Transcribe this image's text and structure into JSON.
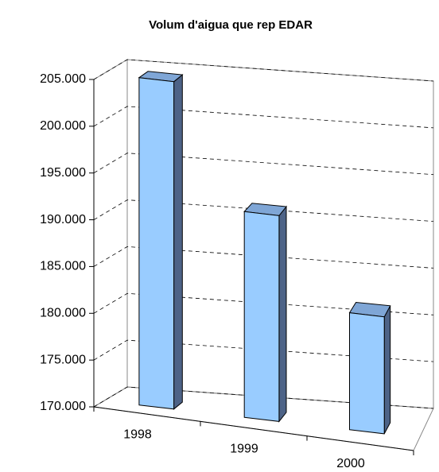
{
  "chart_data": {
    "type": "bar3d",
    "title": "Volum d'aigua que rep EDAR",
    "categories": [
      "1998",
      "1999",
      "2000"
    ],
    "values": [
      205000,
      192000,
      182500
    ],
    "color": "#99ccff",
    "ylim": [
      170000,
      205000
    ],
    "yticks": [
      {
        "value": 170000,
        "label": "170.000"
      },
      {
        "value": 175000,
        "label": "175.000"
      },
      {
        "value": 180000,
        "label": "180.000"
      },
      {
        "value": 185000,
        "label": "185.000"
      },
      {
        "value": 190000,
        "label": "190.000"
      },
      {
        "value": 195000,
        "label": "195.000"
      },
      {
        "value": 200000,
        "label": "200.000"
      },
      {
        "value": 205000,
        "label": "205.000"
      }
    ],
    "grid": true
  }
}
